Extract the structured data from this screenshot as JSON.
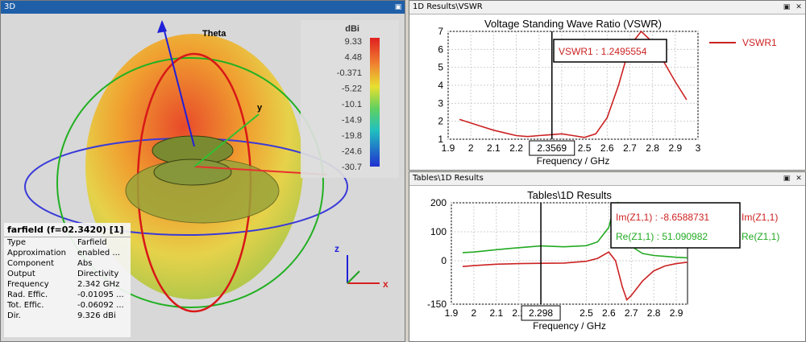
{
  "pane_3d": {
    "title": "3D",
    "axis_label_theta": "Theta",
    "axis_label_y": "y",
    "legend_unit": "dBi",
    "legend_ticks": [
      "9.33",
      "4.48",
      "-0.371",
      "-5.22",
      "-10.1",
      "-14.9",
      "-19.8",
      "-24.6",
      "-30.7"
    ],
    "axes_triad": {
      "z": "z",
      "x": "x"
    },
    "info": {
      "header": "farfield (f=02.3420) [1]",
      "rows": [
        {
          "key": "Type",
          "value": "Farfield"
        },
        {
          "key": "Approximation",
          "value": "enabled ..."
        },
        {
          "key": "Component",
          "value": "Abs"
        },
        {
          "key": "Output",
          "value": "Directivity"
        },
        {
          "key": "Frequency",
          "value": "2.342 GHz"
        },
        {
          "key": "Rad. Effic.",
          "value": "-0.01095 ..."
        },
        {
          "key": "Tot. Effic.",
          "value": "-0.06092 ..."
        },
        {
          "key": "Dir.",
          "value": "9.326 dBi"
        }
      ]
    }
  },
  "pane_vswr": {
    "title": "1D Results\\VSWR",
    "legend_label": "VSWR1",
    "marker_readout": "VSWR1 : 1.2495554",
    "marker_x": "2.3569",
    "colors": {
      "series": "#cc2222"
    }
  },
  "pane_z": {
    "title": "Tables\\1D Results",
    "legend_im": "Im(Z1,1)",
    "legend_re": "Re(Z1,1)",
    "readout_im": "Im(Z1,1) : -8.6588731",
    "readout_re": "Re(Z1,1) : 51.090982",
    "marker_x": "2.298",
    "colors": {
      "im": "#cc2222",
      "re": "#22aa22"
    }
  },
  "chart_data": [
    {
      "type": "line",
      "title": "Voltage Standing Wave Ratio (VSWR)",
      "xlabel": "Frequency / GHz",
      "ylabel": "",
      "xlim": [
        1.9,
        3.0
      ],
      "ylim": [
        1,
        7
      ],
      "xticks": [
        "1.9",
        "2",
        "2.1",
        "2.2",
        "2.3",
        "2.4",
        "2.5",
        "2.6",
        "2.7",
        "2.8",
        "2.9",
        "3"
      ],
      "yticks": [
        "1",
        "2",
        "3",
        "4",
        "5",
        "6",
        "7"
      ],
      "grid": true,
      "series": [
        {
          "name": "VSWR1",
          "x": [
            1.95,
            2.0,
            2.05,
            2.1,
            2.15,
            2.2,
            2.25,
            2.3,
            2.35,
            2.4,
            2.45,
            2.5,
            2.55,
            2.6,
            2.65,
            2.7,
            2.75,
            2.8,
            2.85,
            2.9,
            2.95
          ],
          "values": [
            2.1,
            1.9,
            1.7,
            1.5,
            1.35,
            1.2,
            1.15,
            1.2,
            1.25,
            1.3,
            1.2,
            1.1,
            1.3,
            2.2,
            4.0,
            6.2,
            7.0,
            6.4,
            5.3,
            4.2,
            3.2
          ]
        }
      ]
    },
    {
      "type": "line",
      "title": "Tables\\1D Results",
      "xlabel": "Frequency / GHz",
      "ylabel": "",
      "xlim": [
        1.9,
        2.95
      ],
      "ylim": [
        -150,
        200
      ],
      "xticks": [
        "1.9",
        "2",
        "2.1",
        "2.2",
        "2.298",
        "2.5",
        "2.6",
        "2.7",
        "2.8",
        "2.9"
      ],
      "yticks": [
        "200",
        "100",
        "0",
        "-150"
      ],
      "grid": true,
      "series": [
        {
          "name": "Im(Z1,1)",
          "x": [
            1.95,
            2.0,
            2.1,
            2.2,
            2.3,
            2.4,
            2.5,
            2.55,
            2.6,
            2.63,
            2.66,
            2.68,
            2.7,
            2.75,
            2.8,
            2.85,
            2.9,
            2.95
          ],
          "values": [
            -20,
            -17,
            -12,
            -10,
            -9,
            -8,
            -2,
            8,
            30,
            0,
            -90,
            -135,
            -120,
            -70,
            -35,
            -18,
            -10,
            -5
          ]
        },
        {
          "name": "Re(Z1,1)",
          "x": [
            1.95,
            2.0,
            2.1,
            2.2,
            2.3,
            2.4,
            2.5,
            2.55,
            2.6,
            2.62,
            2.64,
            2.66,
            2.7,
            2.75,
            2.8,
            2.85,
            2.9,
            2.95
          ],
          "values": [
            28,
            30,
            38,
            45,
            51,
            48,
            52,
            65,
            115,
            175,
            200,
            150,
            50,
            25,
            18,
            15,
            12,
            10
          ]
        }
      ]
    }
  ]
}
